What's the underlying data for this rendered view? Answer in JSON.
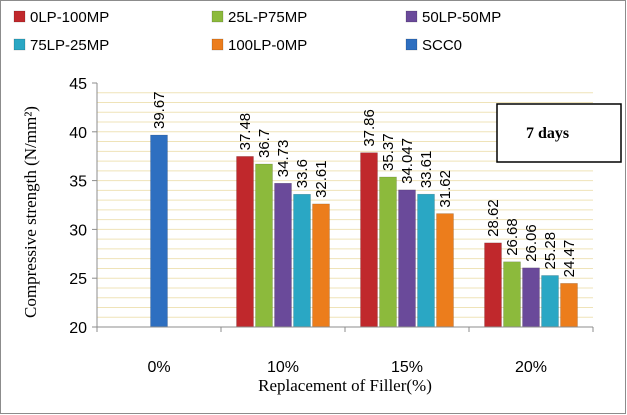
{
  "chart_data": {
    "type": "bar",
    "categories": [
      "0%",
      "10%",
      "15%",
      "20%"
    ],
    "series": [
      {
        "name": "0LP-100MP",
        "color": "#c0282c",
        "values": [
          null,
          37.48,
          37.86,
          28.62
        ],
        "labels": [
          null,
          "37.48",
          "37.86",
          "28.62"
        ]
      },
      {
        "name": "25L-P75MP",
        "color": "#8cba3c",
        "values": [
          null,
          36.7,
          35.37,
          26.68
        ],
        "labels": [
          null,
          "36.7",
          "35.37",
          "26.68"
        ]
      },
      {
        "name": "50LP-50MP",
        "color": "#6a4a9a",
        "values": [
          null,
          34.73,
          34.047,
          26.06
        ],
        "labels": [
          null,
          "34.73",
          "34.047",
          "26.06"
        ]
      },
      {
        "name": "75LP-25MP",
        "color": "#2aa7c4",
        "values": [
          null,
          33.6,
          33.61,
          25.28
        ],
        "labels": [
          null,
          "33.6",
          "33.61",
          "25.28"
        ]
      },
      {
        "name": "100LP-0MP",
        "color": "#ec7d1c",
        "values": [
          null,
          32.61,
          31.62,
          24.47
        ],
        "labels": [
          null,
          "32.61",
          "31.62",
          "24.47"
        ]
      },
      {
        "name": "SCC0",
        "color": "#2e6fc0",
        "values": [
          39.67,
          null,
          null,
          null
        ],
        "labels": [
          "39.67",
          null,
          null,
          null
        ]
      }
    ],
    "xlabel": "Replacement  of Filler(%)",
    "ylabel": "Compressive strength (N/mm²)",
    "ylim": [
      20,
      45
    ],
    "yticks": [
      "20",
      "25",
      "30",
      "35",
      "40",
      "45"
    ],
    "annotation": "7 days",
    "grid": true,
    "legend": "top"
  }
}
